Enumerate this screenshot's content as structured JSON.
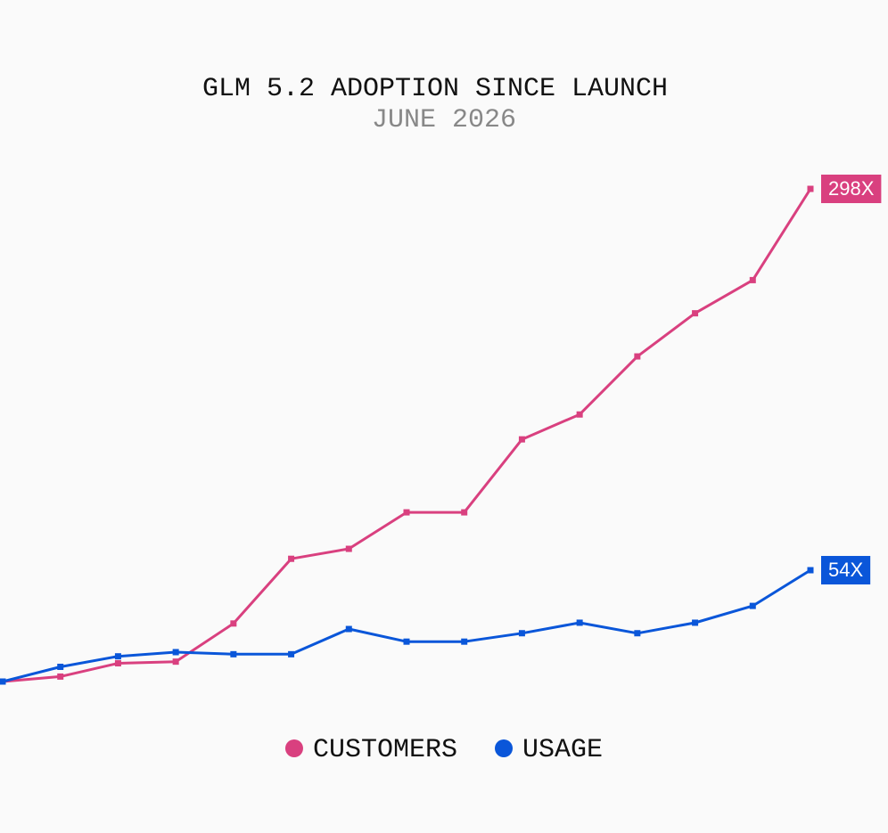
{
  "chart_data": {
    "type": "line",
    "title": "GLM 5.2 ADOPTION SINCE LAUNCH",
    "subtitle": "JUNE 2026",
    "categories": [
      null,
      null,
      null,
      null,
      null,
      null,
      null,
      null,
      null,
      null,
      null,
      null,
      null,
      null,
      null
    ],
    "series": [
      {
        "name": "CUSTOMERS",
        "color": "#d9407f",
        "values": [
          1,
          4,
          12,
          13,
          36,
          75,
          81,
          103,
          103,
          147,
          162,
          197,
          223,
          243,
          298
        ],
        "value_labels": [
          null,
          null,
          null,
          null,
          null,
          null,
          null,
          null,
          null,
          null,
          null,
          null,
          null,
          null,
          "298X"
        ]
      },
      {
        "name": "USAGE",
        "color": "#0a56d9",
        "axis": "y2",
        "values": [
          1,
          8,
          13,
          15,
          14,
          14,
          26,
          20,
          20,
          24,
          29,
          24,
          29,
          37,
          54
        ],
        "value_labels": [
          null,
          null,
          null,
          null,
          null,
          null,
          null,
          null,
          null,
          null,
          null,
          null,
          null,
          null,
          "54X"
        ]
      }
    ],
    "ylim": [
      1,
      298
    ],
    "y2lim": [
      1,
      235.5
    ],
    "grid": false,
    "legend": "bottom"
  }
}
